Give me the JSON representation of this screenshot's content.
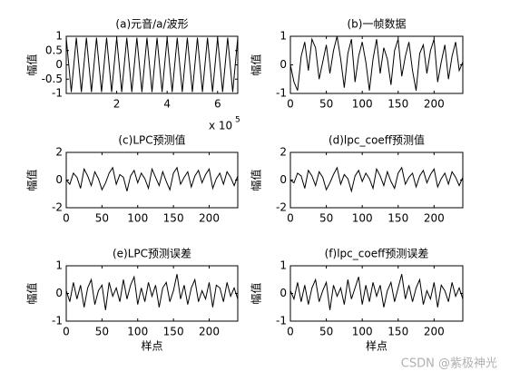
{
  "chart_data": [
    {
      "type": "line",
      "title": "(a)元音/a/波形",
      "y_label": "幅值",
      "x_scale": {
        "base": "x 10",
        "exponent": "5"
      },
      "color": "#000000",
      "x": [
        0,
        0.2,
        0.4,
        0.6,
        0.8,
        1,
        1.2,
        1.4,
        1.6,
        1.8,
        2,
        2.2,
        2.4,
        2.6,
        2.8,
        3,
        3.2,
        3.4,
        3.6,
        3.8,
        4,
        4.2,
        4.4,
        4.6,
        4.8,
        5,
        5.2,
        5.4,
        5.6,
        5.8,
        6,
        6.2,
        6.4,
        6.6,
        6.8
      ],
      "values": [
        0.95,
        -0.95,
        0.95,
        -0.95,
        0.95,
        -0.95,
        0.95,
        -0.95,
        0.95,
        -0.95,
        0.95,
        -0.95,
        0.95,
        -0.95,
        0.95,
        -0.95,
        0.95,
        -0.95,
        0.95,
        -0.95,
        0.95,
        -0.95,
        0.95,
        -0.95,
        0.95,
        -0.95,
        0.95,
        -0.95,
        0.95,
        -0.95,
        0.95,
        -0.95,
        0.95,
        -0.95,
        0.95
      ],
      "xlim": [
        0,
        6.8
      ],
      "ylim": [
        -1,
        1
      ],
      "xticks": [
        2,
        4,
        6
      ],
      "yticks": [
        -1,
        -0.5,
        0,
        0.5,
        1
      ]
    },
    {
      "type": "line",
      "title": "(b)一帧数据",
      "y_label": "幅值",
      "color": "#000000",
      "x": [
        0,
        5,
        10,
        15,
        20,
        25,
        30,
        35,
        40,
        45,
        50,
        55,
        60,
        65,
        70,
        75,
        80,
        85,
        90,
        95,
        100,
        105,
        110,
        115,
        120,
        125,
        130,
        135,
        140,
        145,
        150,
        155,
        160,
        165,
        170,
        175,
        180,
        185,
        190,
        195,
        200,
        205,
        210,
        215,
        220,
        225,
        230,
        235,
        240
      ],
      "values": [
        0,
        -0.6,
        -0.9,
        0.3,
        0.8,
        -0.2,
        0.9,
        0.6,
        -0.5,
        0.1,
        0.7,
        -0.3,
        0.5,
        1,
        0.2,
        -0.8,
        0.4,
        0.9,
        -0.6,
        0.3,
        0.8,
        0.1,
        -0.9,
        0.2,
        0.9,
        -0.3,
        0.6,
        0.2,
        -0.7,
        0.5,
        0.9,
        -0.4,
        0.3,
        0.8,
        -0.2,
        -0.9,
        0.4,
        0.7,
        -0.3,
        0.5,
        0.9,
        -0.6,
        0.1,
        0.7,
        -0.5,
        0.3,
        0.8,
        -0.2,
        0.1
      ],
      "xlim": [
        0,
        240
      ],
      "ylim": [
        -1,
        1
      ],
      "xticks": [
        0,
        50,
        100,
        150,
        200
      ],
      "yticks": [
        -1,
        0,
        1
      ]
    },
    {
      "type": "line",
      "title": "(c)LPC预测值",
      "y_label": "幅值",
      "color": "#000000",
      "x": [
        0,
        5,
        10,
        15,
        20,
        25,
        30,
        35,
        40,
        45,
        50,
        55,
        60,
        65,
        70,
        75,
        80,
        85,
        90,
        95,
        100,
        105,
        110,
        115,
        120,
        125,
        130,
        135,
        140,
        145,
        150,
        155,
        160,
        165,
        170,
        175,
        180,
        185,
        190,
        195,
        200,
        205,
        210,
        215,
        220,
        225,
        230,
        235,
        240
      ],
      "values": [
        0,
        -0.3,
        0.5,
        0.2,
        -0.6,
        0.8,
        0.3,
        -0.4,
        0.6,
        0.1,
        -0.7,
        -0.2,
        0.5,
        0.9,
        -0.3,
        0.4,
        0.2,
        -0.8,
        0.3,
        0.7,
        -0.2,
        0.5,
        0.1,
        -0.6,
        0.8,
        0.2,
        -0.4,
        0.6,
        -0.1,
        -0.7,
        0.5,
        0.9,
        -0.3,
        0.2,
        0.6,
        -0.5,
        0.3,
        0.7,
        -0.2,
        0.4,
        0.8,
        -0.6,
        0.1,
        0.5,
        -0.3,
        0.6,
        0.2,
        -0.4,
        0.3
      ],
      "xlim": [
        0,
        240
      ],
      "ylim": [
        -2,
        2
      ],
      "xticks": [
        0,
        50,
        100,
        150,
        200
      ],
      "yticks": [
        -2,
        0,
        2
      ]
    },
    {
      "type": "line",
      "title": "(d)lpc_coeff预测值",
      "y_label": "幅值",
      "color": "#000000",
      "x": [
        0,
        5,
        10,
        15,
        20,
        25,
        30,
        35,
        40,
        45,
        50,
        55,
        60,
        65,
        70,
        75,
        80,
        85,
        90,
        95,
        100,
        105,
        110,
        115,
        120,
        125,
        130,
        135,
        140,
        145,
        150,
        155,
        160,
        165,
        170,
        175,
        180,
        185,
        190,
        195,
        200,
        205,
        210,
        215,
        220,
        225,
        230,
        235,
        240
      ],
      "values": [
        0,
        -0.2,
        0.5,
        0.3,
        -0.6,
        0.7,
        0.3,
        -0.4,
        0.6,
        0.2,
        -0.7,
        -0.2,
        0.4,
        0.9,
        -0.3,
        0.4,
        0.1,
        -0.8,
        0.3,
        0.7,
        -0.1,
        0.5,
        0.1,
        -0.6,
        0.8,
        0.3,
        -0.4,
        0.6,
        -0.1,
        -0.6,
        0.5,
        0.9,
        -0.3,
        0.2,
        0.5,
        -0.5,
        0.3,
        0.7,
        -0.2,
        0.4,
        0.8,
        -0.5,
        0.1,
        0.5,
        -0.3,
        0.6,
        0.2,
        -0.4,
        0.2
      ],
      "xlim": [
        0,
        240
      ],
      "ylim": [
        -2,
        2
      ],
      "xticks": [
        0,
        50,
        100,
        150,
        200
      ],
      "yticks": [
        -2,
        0,
        2
      ]
    },
    {
      "type": "line",
      "title": "(e)LPC预测误差",
      "y_label": "幅值",
      "x_label": "样点",
      "color": "#000000",
      "x": [
        0,
        5,
        10,
        15,
        20,
        25,
        30,
        35,
        40,
        45,
        50,
        55,
        60,
        65,
        70,
        75,
        80,
        85,
        90,
        95,
        100,
        105,
        110,
        115,
        120,
        125,
        130,
        135,
        140,
        145,
        150,
        155,
        160,
        165,
        170,
        175,
        180,
        185,
        190,
        195,
        200,
        205,
        210,
        215,
        220,
        225,
        230,
        235,
        240
      ],
      "values": [
        0.1,
        -0.3,
        0.4,
        -0.2,
        0.3,
        -0.5,
        0.2,
        0.5,
        -0.4,
        0.1,
        0.3,
        -0.6,
        0.4,
        -0.1,
        0.2,
        -0.3,
        0.5,
        -0.2,
        0.3,
        0.6,
        -0.4,
        0.2,
        -0.3,
        0.4,
        -0.1,
        0.3,
        -0.5,
        0.2,
        0.4,
        -0.3,
        0.1,
        0.7,
        -0.2,
        0.3,
        -0.4,
        0.2,
        0.5,
        -0.3,
        0.1,
        -0.2,
        0.4,
        -0.5,
        0.3,
        0.2,
        -0.3,
        0.4,
        -0.1,
        0.2,
        -0.2
      ],
      "xlim": [
        0,
        240
      ],
      "ylim": [
        -1,
        1
      ],
      "xticks": [
        0,
        50,
        100,
        150,
        200
      ],
      "yticks": [
        -1,
        0,
        1
      ]
    },
    {
      "type": "line",
      "title": "(f)lpc_coeff预测误差",
      "y_label": "幅值",
      "x_label": "样点",
      "color": "#000000",
      "x": [
        0,
        5,
        10,
        15,
        20,
        25,
        30,
        35,
        40,
        45,
        50,
        55,
        60,
        65,
        70,
        75,
        80,
        85,
        90,
        95,
        100,
        105,
        110,
        115,
        120,
        125,
        130,
        135,
        140,
        145,
        150,
        155,
        160,
        165,
        170,
        175,
        180,
        185,
        190,
        195,
        200,
        205,
        210,
        215,
        220,
        225,
        230,
        235,
        240
      ],
      "values": [
        0.1,
        -0.2,
        0.4,
        -0.3,
        0.3,
        -0.4,
        0.2,
        0.5,
        -0.3,
        0.1,
        0.4,
        -0.6,
        0.3,
        -0.1,
        0.2,
        -0.4,
        0.5,
        -0.2,
        0.2,
        0.6,
        -0.4,
        0.3,
        -0.3,
        0.4,
        -0.1,
        0.3,
        -0.5,
        0.1,
        0.4,
        -0.3,
        0.2,
        0.7,
        -0.2,
        0.3,
        -0.3,
        0.2,
        0.5,
        -0.4,
        0.1,
        -0.2,
        0.4,
        -0.5,
        0.3,
        0.1,
        -0.3,
        0.4,
        -0.1,
        0.2,
        -0.2
      ],
      "xlim": [
        0,
        240
      ],
      "ylim": [
        -1,
        1
      ],
      "xticks": [
        0,
        50,
        100,
        150,
        200
      ],
      "yticks": [
        -1,
        0,
        1
      ]
    }
  ],
  "watermark": "CSDN @紫极神光"
}
